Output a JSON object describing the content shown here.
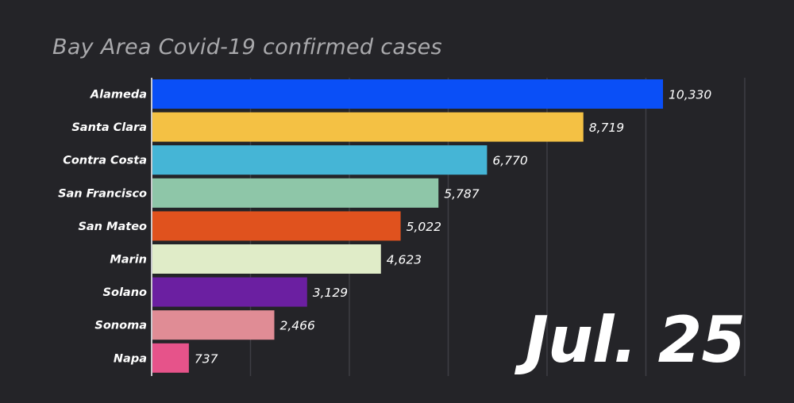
{
  "chart_data": {
    "type": "bar",
    "orientation": "horizontal",
    "title": "Bay Area Covid-19 confirmed cases",
    "date": "Jul. 25",
    "categories": [
      "Alameda",
      "Santa Clara",
      "Contra Costa",
      "San Francisco",
      "San Mateo",
      "Marin",
      "Solano",
      "Sonoma",
      "Napa"
    ],
    "values": [
      10330,
      8719,
      6770,
      5787,
      5022,
      4623,
      3129,
      2466,
      737
    ],
    "value_labels": [
      "10,330",
      "8,719",
      "6,770",
      "5,787",
      "5,022",
      "4,623",
      "3,129",
      "2,466",
      "737"
    ],
    "colors": [
      "#0a4ff7",
      "#f4c144",
      "#45b5d6",
      "#8ec6a8",
      "#e0521e",
      "#e0ecc8",
      "#6b1fa1",
      "#e08c95",
      "#e6538a"
    ],
    "xlim": [
      0,
      12000
    ],
    "grid": true,
    "xticks_shown": false
  }
}
